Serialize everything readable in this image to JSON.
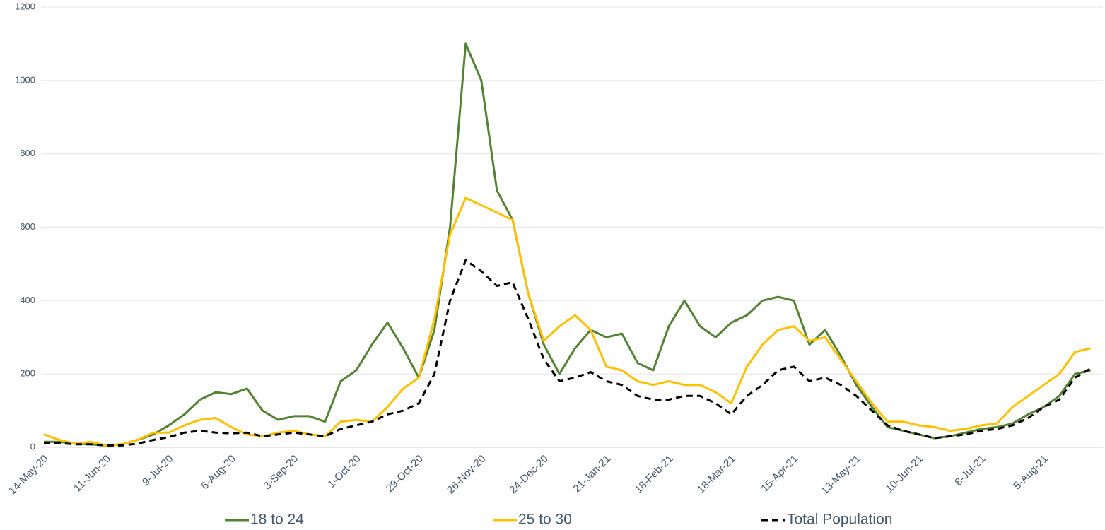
{
  "chart_data": {
    "type": "line",
    "categories": [
      "14-May-20",
      null,
      null,
      null,
      "11-Jun-20",
      null,
      null,
      null,
      "9-Jul-20",
      null,
      null,
      null,
      "6-Aug-20",
      null,
      null,
      null,
      "3-Sep-20",
      null,
      null,
      null,
      "1-Oct-20",
      null,
      null,
      null,
      "29-Oct-20",
      null,
      null,
      null,
      "26-Nov-20",
      null,
      null,
      null,
      "24-Dec-20",
      null,
      null,
      null,
      "21-Jan-21",
      null,
      null,
      null,
      "18-Feb-21",
      null,
      null,
      null,
      "18-Mar-21",
      null,
      null,
      null,
      "15-Apr-21",
      null,
      null,
      null,
      "13-May-21",
      null,
      null,
      null,
      "10-Jun-21",
      null,
      null,
      null,
      "8-Jul-21",
      null,
      null,
      null,
      "5-Aug-21",
      null,
      null,
      null
    ],
    "series": [
      {
        "name": "18 to 24",
        "color": "#548235",
        "line_style": "solid",
        "values": [
          15,
          15,
          10,
          8,
          5,
          8,
          20,
          35,
          60,
          90,
          130,
          150,
          145,
          160,
          100,
          75,
          85,
          85,
          70,
          180,
          210,
          280,
          340,
          270,
          190,
          320,
          600,
          1100,
          1000,
          700,
          620,
          420,
          280,
          200,
          270,
          320,
          300,
          310,
          230,
          210,
          330,
          400,
          330,
          300,
          340,
          360,
          400,
          410,
          400,
          280,
          320,
          250,
          170,
          110,
          55,
          45,
          35,
          25,
          30,
          40,
          50,
          55,
          65,
          90,
          110,
          140,
          200,
          210
        ]
      },
      {
        "name": "25 to 30",
        "color": "#ffc000",
        "line_style": "solid",
        "values": [
          35,
          20,
          10,
          15,
          5,
          8,
          20,
          40,
          40,
          60,
          75,
          80,
          55,
          35,
          30,
          40,
          45,
          35,
          30,
          70,
          75,
          70,
          110,
          160,
          190,
          350,
          580,
          680,
          660,
          640,
          620,
          420,
          290,
          330,
          360,
          320,
          220,
          210,
          180,
          170,
          180,
          170,
          170,
          150,
          120,
          220,
          280,
          320,
          330,
          290,
          300,
          240,
          180,
          120,
          70,
          70,
          60,
          55,
          45,
          50,
          60,
          65,
          110,
          140,
          170,
          200,
          260,
          270
        ]
      },
      {
        "name": "Total Population",
        "color": "#000000",
        "line_style": "dashed",
        "values": [
          12,
          12,
          8,
          8,
          5,
          5,
          10,
          20,
          28,
          40,
          45,
          40,
          38,
          40,
          30,
          35,
          40,
          35,
          30,
          50,
          60,
          70,
          90,
          100,
          120,
          200,
          400,
          510,
          480,
          440,
          450,
          350,
          240,
          180,
          190,
          205,
          180,
          170,
          140,
          130,
          130,
          140,
          140,
          120,
          90,
          140,
          170,
          210,
          220,
          180,
          190,
          170,
          140,
          100,
          60,
          45,
          35,
          25,
          30,
          35,
          45,
          50,
          60,
          80,
          110,
          130,
          190,
          215
        ]
      }
    ],
    "ylim": [
      0,
      1200
    ],
    "yticks": [
      0,
      200,
      400,
      600,
      800,
      1000,
      1200
    ],
    "grid": true,
    "legend": "bottom"
  }
}
